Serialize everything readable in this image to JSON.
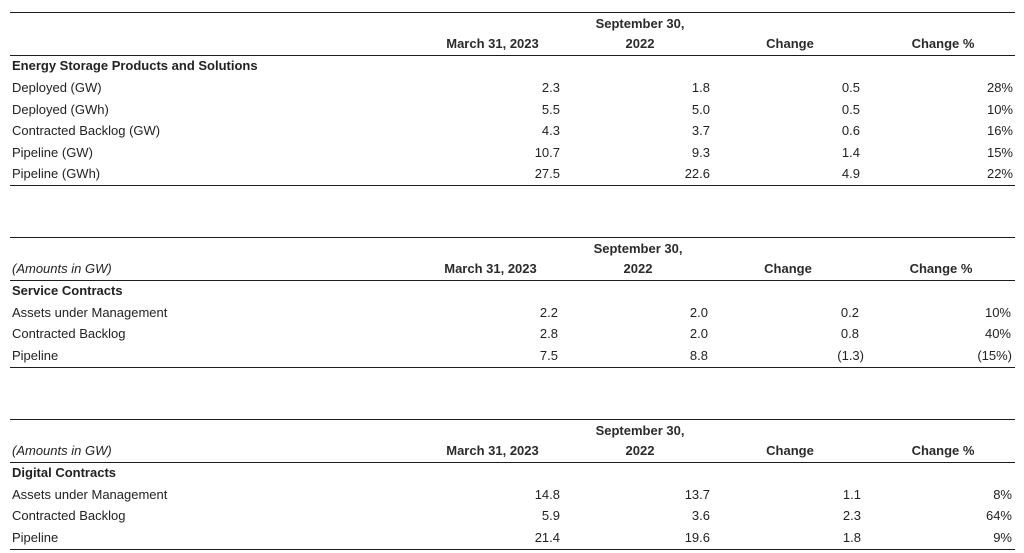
{
  "tables": [
    {
      "header": {
        "amounts_note": "",
        "col_march": "March 31, 2023",
        "col_sept_line1": "September 30,",
        "col_sept_line2": "2022",
        "col_change": "Change",
        "col_change_pct": "Change %"
      },
      "section_title": "Energy Storage Products and Solutions",
      "rows": [
        {
          "label": "Deployed (GW)",
          "march": "2.3",
          "sept": "1.8",
          "change": "0.5",
          "pct": "28%"
        },
        {
          "label": "Deployed (GWh)",
          "march": "5.5",
          "sept": "5.0",
          "change": "0.5",
          "pct": "10%"
        },
        {
          "label": "Contracted Backlog (GW)",
          "march": "4.3",
          "sept": "3.7",
          "change": "0.6",
          "pct": "16%"
        },
        {
          "label": "Pipeline (GW)",
          "march": "10.7",
          "sept": "9.3",
          "change": "1.4",
          "pct": "15%"
        },
        {
          "label": "Pipeline (GWh)",
          "march": "27.5",
          "sept": "22.6",
          "change": "4.9",
          "pct": "22%"
        }
      ]
    },
    {
      "header": {
        "amounts_note": "(Amounts in GW)",
        "col_march": "March 31, 2023",
        "col_sept_line1": "September 30,",
        "col_sept_line2": "2022",
        "col_change": "Change",
        "col_change_pct": "Change %"
      },
      "section_title": "Service Contracts",
      "rows": [
        {
          "label": "Assets under Management",
          "march": "2.2",
          "sept": "2.0",
          "change": "0.2",
          "pct": "10%"
        },
        {
          "label": "Contracted Backlog",
          "march": "2.8",
          "sept": "2.0",
          "change": "0.8",
          "pct": "40%"
        },
        {
          "label": "Pipeline",
          "march": "7.5",
          "sept": "8.8",
          "change": "(1.3)",
          "pct": "(15%)"
        }
      ]
    },
    {
      "header": {
        "amounts_note": "(Amounts in GW)",
        "col_march": "March 31, 2023",
        "col_sept_line1": "September 30,",
        "col_sept_line2": "2022",
        "col_change": "Change",
        "col_change_pct": "Change %"
      },
      "section_title": "Digital Contracts",
      "rows": [
        {
          "label": "Assets under Management",
          "march": "14.8",
          "sept": "13.7",
          "change": "1.1",
          "pct": "8%"
        },
        {
          "label": "Contracted Backlog",
          "march": "5.9",
          "sept": "3.6",
          "change": "2.3",
          "pct": "64%"
        },
        {
          "label": "Pipeline",
          "march": "21.4",
          "sept": "19.6",
          "change": "1.8",
          "pct": "9%"
        }
      ]
    }
  ]
}
